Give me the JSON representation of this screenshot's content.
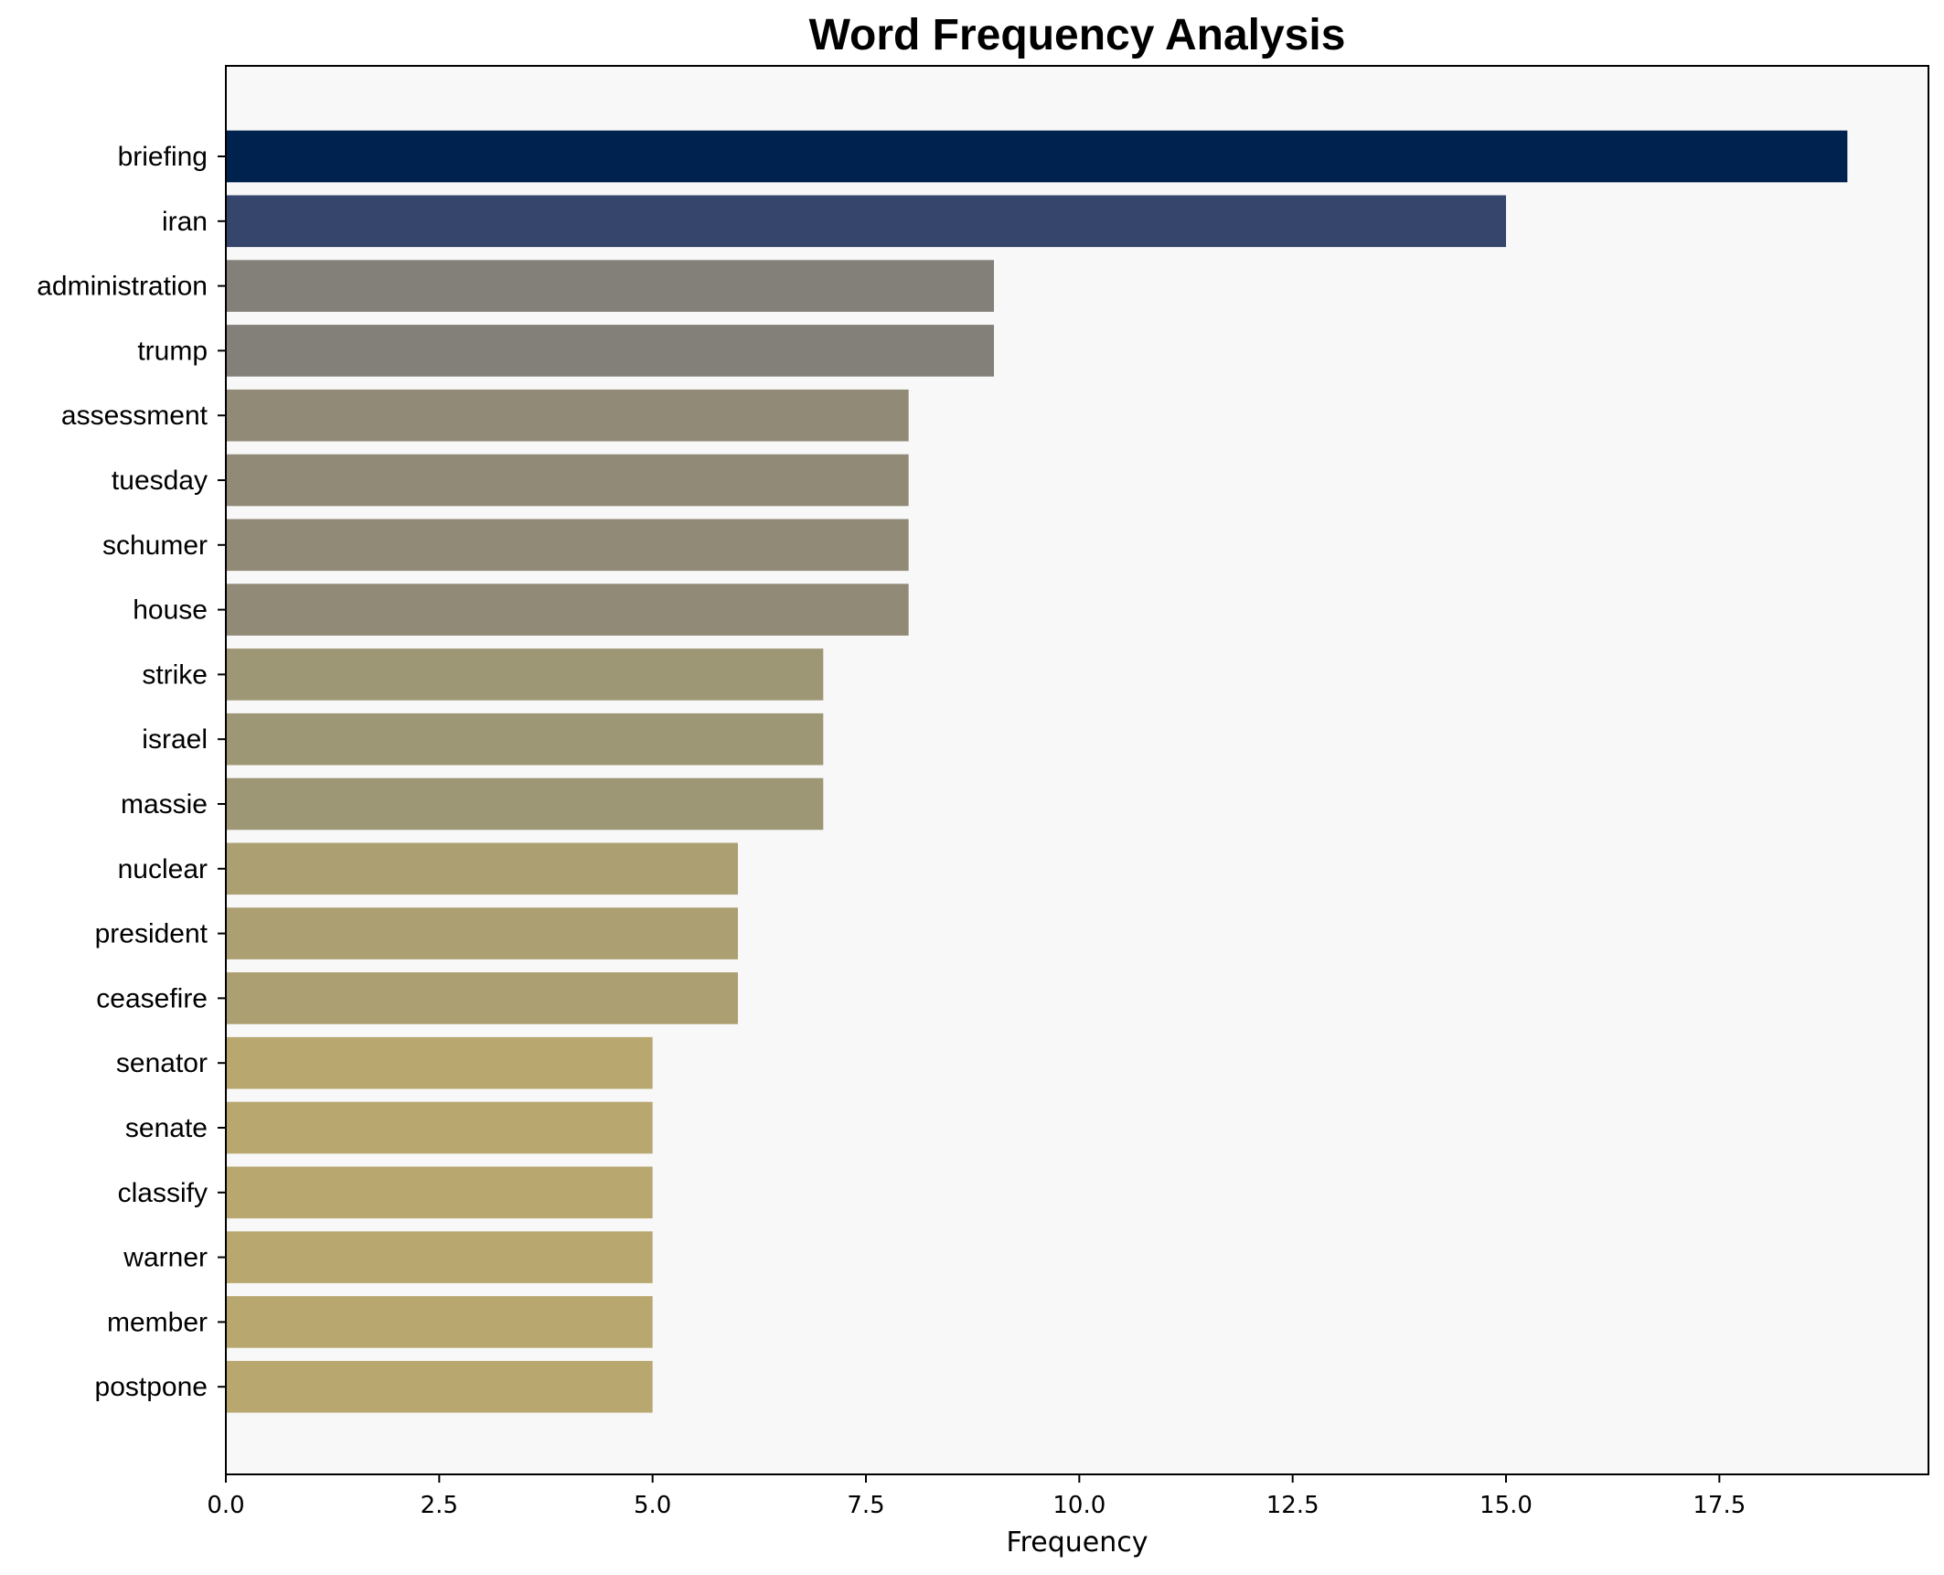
{
  "chart_data": {
    "type": "bar",
    "orientation": "horizontal",
    "title": "Word Frequency Analysis",
    "xlabel": "Frequency",
    "ylabel": "",
    "xlim": [
      0,
      19.95
    ],
    "xticks": [
      "0.0",
      "2.5",
      "5.0",
      "7.5",
      "10.0",
      "12.5",
      "15.0",
      "17.5"
    ],
    "grid": false,
    "legend": "none",
    "categories": [
      "briefing",
      "iran",
      "administration",
      "trump",
      "assessment",
      "tuesday",
      "schumer",
      "house",
      "strike",
      "israel",
      "massie",
      "nuclear",
      "president",
      "ceasefire",
      "senator",
      "senate",
      "classify",
      "warner",
      "member",
      "postpone"
    ],
    "values": [
      19,
      15,
      9,
      9,
      8,
      8,
      8,
      8,
      7,
      7,
      7,
      6,
      6,
      6,
      5,
      5,
      5,
      5,
      5,
      5
    ],
    "colors": [
      "#00224e",
      "#35456c",
      "#838079",
      "#838079",
      "#918a77",
      "#918a77",
      "#918a77",
      "#918a77",
      "#9e9776",
      "#9e9776",
      "#9e9776",
      "#aca072",
      "#aca072",
      "#aca072",
      "#b8a870",
      "#b8a870",
      "#b8a870",
      "#b8a870",
      "#b8a870",
      "#b8a870"
    ],
    "plot_background": "#f8f8f8"
  }
}
